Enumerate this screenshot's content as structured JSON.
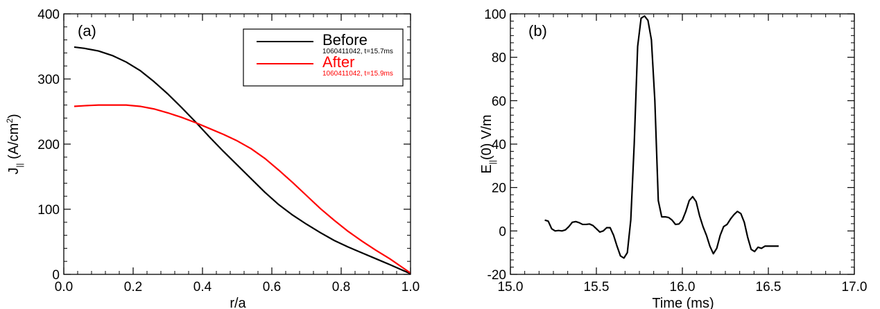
{
  "chart_data": [
    {
      "type": "line",
      "panel_label": "(a)",
      "xlabel": "r/a",
      "ylabel_main": "J",
      "ylabel_sub": "||",
      "ylabel_unit": " (A/cm",
      "ylabel_sup": "2",
      "ylabel_close": ")",
      "xlim": [
        0.0,
        1.0
      ],
      "ylim": [
        0,
        400
      ],
      "xticks": [
        0.0,
        0.2,
        0.4,
        0.6,
        0.8,
        1.0
      ],
      "xtick_labels": [
        "0.0",
        "0.2",
        "0.4",
        "0.6",
        "0.8",
        "1.0"
      ],
      "yticks": [
        0,
        100,
        200,
        300,
        400
      ],
      "ytick_labels": [
        "0",
        "100",
        "200",
        "300",
        "400"
      ],
      "legend_position": "top-right",
      "series": [
        {
          "name": "Before",
          "sublabel": "1060411042, t=15.7ms",
          "color": "#000000",
          "x": [
            0.03,
            0.06,
            0.1,
            0.14,
            0.18,
            0.22,
            0.26,
            0.3,
            0.34,
            0.38,
            0.42,
            0.46,
            0.5,
            0.54,
            0.58,
            0.62,
            0.66,
            0.7,
            0.74,
            0.78,
            0.82,
            0.86,
            0.9,
            0.94,
            0.97,
            1.0
          ],
          "y": [
            349,
            347,
            343,
            336,
            326,
            313,
            296,
            277,
            256,
            234,
            211,
            189,
            168,
            147,
            126,
            107,
            91,
            77,
            64,
            52,
            42,
            33,
            24,
            15,
            8,
            1
          ]
        },
        {
          "name": "After",
          "sublabel": "1060411042, t=15.9ms",
          "color": "#ff0000",
          "x": [
            0.03,
            0.06,
            0.1,
            0.14,
            0.18,
            0.22,
            0.26,
            0.3,
            0.34,
            0.38,
            0.42,
            0.46,
            0.5,
            0.54,
            0.58,
            0.62,
            0.66,
            0.7,
            0.74,
            0.78,
            0.82,
            0.86,
            0.9,
            0.94,
            0.97,
            1.0
          ],
          "y": [
            258,
            259,
            260,
            260,
            260,
            258,
            254,
            248,
            241,
            233,
            224,
            215,
            205,
            193,
            178,
            160,
            141,
            121,
            101,
            83,
            66,
            51,
            37,
            24,
            13,
            2
          ]
        }
      ]
    },
    {
      "type": "line",
      "panel_label": "(b)",
      "xlabel": "Time (ms)",
      "ylabel_main": "E",
      "ylabel_sub": "||",
      "ylabel_unit": "(0) V/m",
      "xlim": [
        15.0,
        17.0
      ],
      "ylim": [
        -20,
        100
      ],
      "xticks": [
        15.0,
        15.5,
        16.0,
        16.5,
        17.0
      ],
      "xtick_labels": [
        "15.0",
        "15.5",
        "16.0",
        "16.5",
        "17.0"
      ],
      "yticks": [
        -20,
        0,
        20,
        40,
        60,
        80,
        100
      ],
      "ytick_labels": [
        "-20",
        "0",
        "20",
        "40",
        "60",
        "80",
        "100"
      ],
      "series": [
        {
          "color": "#000000",
          "x": [
            15.2,
            15.22,
            15.24,
            15.26,
            15.28,
            15.3,
            15.32,
            15.34,
            15.36,
            15.38,
            15.4,
            15.42,
            15.44,
            15.46,
            15.48,
            15.5,
            15.52,
            15.54,
            15.56,
            15.58,
            15.6,
            15.62,
            15.64,
            15.66,
            15.68,
            15.7,
            15.72,
            15.74,
            15.76,
            15.78,
            15.8,
            15.82,
            15.84,
            15.86,
            15.88,
            15.9,
            15.92,
            15.94,
            15.96,
            15.98,
            16.0,
            16.02,
            16.04,
            16.06,
            16.08,
            16.1,
            16.12,
            16.14,
            16.16,
            16.18,
            16.2,
            16.22,
            16.24,
            16.26,
            16.28,
            16.3,
            16.32,
            16.34,
            16.36,
            16.38,
            16.4,
            16.42,
            16.44,
            16.46,
            16.48,
            16.5,
            16.52,
            16.54,
            16.56
          ],
          "y": [
            5,
            4.5,
            1,
            0,
            0.2,
            0,
            0.5,
            2,
            4,
            4.3,
            3.8,
            3,
            3,
            3.2,
            2.5,
            1,
            -0.5,
            0,
            1.5,
            1.5,
            -2,
            -7,
            -11.5,
            -12.5,
            -10,
            5,
            40,
            85,
            98,
            99,
            97,
            88,
            60,
            14,
            6.5,
            6.5,
            6.2,
            5,
            3,
            3.2,
            5,
            9,
            14,
            15.8,
            13.5,
            7,
            2,
            -2,
            -7,
            -10.5,
            -8,
            -2,
            2,
            3,
            5.5,
            7.5,
            9,
            8,
            4,
            -3,
            -8.5,
            -9.5,
            -7.5,
            -8,
            -7,
            -7,
            -7,
            -7,
            -7
          ]
        }
      ]
    }
  ]
}
